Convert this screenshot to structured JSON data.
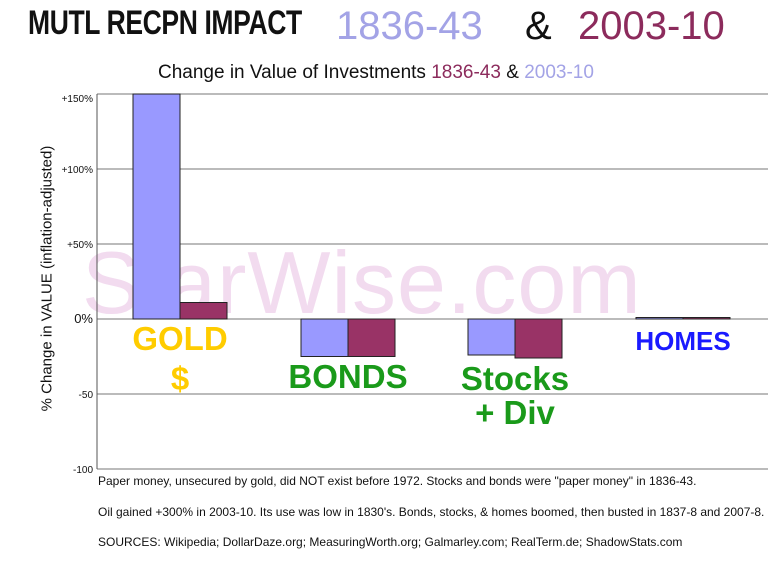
{
  "header": {
    "title": "MUTL RECPN IMPACT",
    "period_a": "1836-43",
    "amp": "&",
    "period_b": "2003-10"
  },
  "subtitle": {
    "text": "Change in Value of Investments",
    "period_a": "1836-43",
    "amp": "&",
    "period_b": "2003-10"
  },
  "watermark": "StarWise.com",
  "colors": {
    "period_1836_43": "#9999ff",
    "period_2003_10": "#993366",
    "gold_label": "#ffcc00",
    "green_label": "#1a9a1a",
    "homes_label": "#1a1aff"
  },
  "chart_data": {
    "type": "bar",
    "title": "Change in Value of Investments 1836-43 & 2003-10",
    "ylabel": "% Change in VALUE (inflation-adjusted)",
    "ylim": [
      -100,
      150
    ],
    "yticks": [
      {
        "value": 150,
        "label": "+150%"
      },
      {
        "value": 100,
        "label": "+100%"
      },
      {
        "value": 50,
        "label": "+50%"
      },
      {
        "value": 0,
        "label": "0%"
      },
      {
        "value": -50,
        "label": "-50"
      },
      {
        "value": -100,
        "label": "-100"
      }
    ],
    "grid": true,
    "categories": [
      {
        "name": "gold",
        "lines": [
          "GOLD",
          "$"
        ],
        "color": "#ffcc00"
      },
      {
        "name": "bonds",
        "lines": [
          "BONDS"
        ],
        "color": "#1a9a1a"
      },
      {
        "name": "stocks",
        "lines": [
          "Stocks",
          "+ Div"
        ],
        "color": "#1a9a1a"
      },
      {
        "name": "homes",
        "lines": [
          "HOMES"
        ],
        "color": "#1a1aff"
      }
    ],
    "series": [
      {
        "period": "1836-43",
        "color": "#9999ff",
        "values": [
          150,
          -25,
          -24,
          1
        ]
      },
      {
        "period": "2003-10",
        "color": "#993366",
        "values": [
          11,
          -25,
          -26,
          1
        ]
      }
    ]
  },
  "notes": [
    "Paper money, unsecured by gold, did NOT exist before 1972.  Stocks and bonds were \"paper money\" in 1836-43.",
    "Oil gained +300%  in 2003-10.  Its use was low in 1830's.  Bonds, stocks, & homes boomed, then busted in 1837-8 and 2007-8.",
    "SOURCES: Wikipedia; DollarDaze.org; MeasuringWorth.org; Galmarley.com; RealTerm.de; ShadowStats.com"
  ]
}
